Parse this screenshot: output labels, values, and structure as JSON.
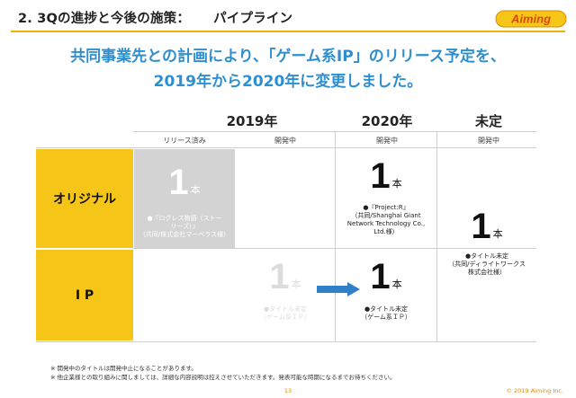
{
  "header": {
    "title_number": "2. 3Qの進捗と今後の施策：",
    "title_topic": "パイプライン",
    "logo_text": "Aiming"
  },
  "headline": {
    "line1": "共同事業先との計画により、「ゲーム系IP」のリリース予定を、",
    "line2": "2019年から2020年に変更しました。"
  },
  "columns": {
    "y2019": "2019年",
    "y2020": "2020年",
    "undecided": "未定",
    "status_released": "リリース済み",
    "status_dev_2019": "開発中",
    "status_dev_2020": "開発中",
    "status_dev_undecided": "開発中"
  },
  "rows": {
    "original": "オリジナル",
    "ip": "I P"
  },
  "cells": {
    "original_released": {
      "count": "1",
      "unit": "本",
      "line1": "●『ログレス物語（ストー",
      "line2": "リーズ）』",
      "line3": "（共同/株式会社マーベラス様）"
    },
    "original_2020": {
      "count": "1",
      "unit": "本",
      "line1": "●『Project:R』",
      "line2": "（共同/Shanghai Giant",
      "line3": "Network Technology Co.,",
      "line4": "Ltd.様）"
    },
    "undecided": {
      "count": "1",
      "unit": "本",
      "line1": "●タイトル未定",
      "line2": "（共同/ディライトワークス",
      "line3": "株式会社様）"
    },
    "ip_2019_moved": {
      "count": "1",
      "unit": "本",
      "line1": "●タイトル未定",
      "line2": "（ゲーム系ＩＰ）"
    },
    "ip_2020": {
      "count": "1",
      "unit": "本",
      "line1": "●タイトル未定",
      "line2": "（ゲーム系ＩＰ）"
    }
  },
  "footnotes": {
    "note1": "※ 開発中のタイトルは開発中止になることがあります。",
    "note2": "※ 他企業様との取り組みに関しましては、詳細な内容説明は控えさせていただきます。発表可能な時期になるまでお待ちください。"
  },
  "footer": {
    "page": "13",
    "copyright": "© 2019 Aiming Inc."
  },
  "colors": {
    "accent_yellow": "#f5c518",
    "headline_blue": "#2e8fd0",
    "arrow_blue": "#2f7fc9",
    "released_gray": "#d3d3d3",
    "faded_text": "#dcdcdc",
    "footer_orange": "#e08a00"
  }
}
